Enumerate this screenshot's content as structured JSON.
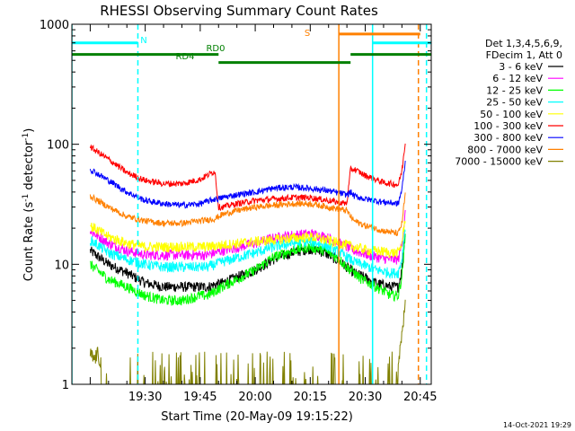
{
  "chart_data": {
    "type": "line",
    "title": "RHESSI Observing Summary Count Rates",
    "xlabel": "Start Time (20-May-09 19:15:22)",
    "ylabel": "Count Rate (s⁻¹ detector⁻¹)",
    "ylabel_main": "Count Rate (s",
    "ylabel_sup1": "-1",
    "ylabel_mid": " detector",
    "ylabel_sup2": "-1",
    "ylabel_end": ")",
    "y_scale": "log",
    "ylim": [
      1,
      1000
    ],
    "xlim_minutes": [
      -5,
      93
    ],
    "x_tick_minutes": [
      15,
      30,
      45,
      60,
      75,
      90
    ],
    "x_tick_labels": [
      "19:30",
      "19:45",
      "20:00",
      "20:15",
      "20:30",
      "20:45"
    ],
    "y_tick_values": [
      1,
      10,
      100,
      1000
    ],
    "y_tick_labels": [
      "1",
      "10",
      "100",
      "1000"
    ],
    "legend_position": "right",
    "legend_header": [
      "Det 1,3,4,5,6,9,",
      "FDecim 1, Att 0"
    ],
    "series": [
      {
        "name": "3 - 6 keV",
        "color": "#000000",
        "x": [
          0,
          5,
          10,
          15,
          20,
          25,
          30,
          32,
          36,
          45,
          50,
          55,
          60,
          62,
          64,
          66,
          68,
          70,
          72,
          74,
          76,
          78,
          82,
          84,
          85,
          86
        ],
        "y": [
          13,
          10,
          8.5,
          7,
          6.5,
          6.5,
          6.5,
          6.5,
          7,
          9,
          11,
          12.5,
          13.5,
          13,
          12.5,
          11.5,
          10.5,
          9.5,
          8.5,
          8,
          7.5,
          7,
          6.5,
          6.5,
          9,
          20
        ]
      },
      {
        "name": "6 - 12 keV",
        "color": "#ff00ff",
        "x": [
          0,
          5,
          10,
          15,
          20,
          25,
          30,
          32,
          36,
          45,
          50,
          55,
          60,
          62,
          64,
          66,
          68,
          70,
          72,
          74,
          76,
          78,
          82,
          84,
          85,
          86
        ],
        "y": [
          19,
          15,
          13,
          12,
          12,
          12,
          12,
          12,
          13,
          15,
          16.5,
          17.5,
          18,
          17.5,
          17,
          16,
          15,
          14,
          13,
          12.5,
          12,
          11.5,
          11,
          11,
          15,
          28
        ]
      },
      {
        "name": "12 - 25 keV",
        "color": "#00ff00",
        "x": [
          0,
          5,
          10,
          15,
          20,
          25,
          30,
          32,
          36,
          45,
          50,
          55,
          60,
          62,
          64,
          66,
          68,
          70,
          72,
          74,
          76,
          78,
          82,
          84,
          85,
          86
        ],
        "y": [
          10,
          7.5,
          6.5,
          5.5,
          5,
          5,
          5.5,
          5.5,
          6.5,
          9,
          11.5,
          13,
          14,
          13.5,
          13,
          12,
          11,
          9.5,
          8.5,
          7.5,
          7,
          6.5,
          5.5,
          5.5,
          8,
          18
        ]
      },
      {
        "name": "25 - 50 keV",
        "color": "#00ffff",
        "x": [
          0,
          5,
          10,
          15,
          20,
          25,
          30,
          32,
          36,
          45,
          50,
          55,
          60,
          62,
          64,
          66,
          68,
          70,
          72,
          74,
          76,
          78,
          82,
          84,
          85,
          86
        ],
        "y": [
          16,
          12.5,
          11,
          10,
          9.5,
          9.5,
          9.5,
          9.5,
          10.5,
          12.5,
          14,
          15,
          15.5,
          15,
          14.5,
          13.5,
          12.5,
          11.5,
          10.5,
          10,
          9.5,
          9,
          8.5,
          8.5,
          11,
          22
        ]
      },
      {
        "name": "50 - 100 keV",
        "color": "#ffff00",
        "x": [
          0,
          5,
          10,
          15,
          20,
          25,
          30,
          32,
          36,
          45,
          50,
          55,
          60,
          62,
          64,
          66,
          68,
          70,
          72,
          74,
          76,
          78,
          82,
          84,
          85,
          86
        ],
        "y": [
          21,
          17,
          15,
          14,
          14,
          14,
          14,
          14,
          14.5,
          15.5,
          16,
          16.5,
          17,
          16.5,
          16,
          15.5,
          15,
          14.5,
          14,
          13.5,
          13,
          13,
          12.5,
          12.5,
          15,
          26
        ]
      },
      {
        "name": "100 - 300 keV",
        "color": "#ff0000",
        "x": [
          0,
          5,
          10,
          15,
          20,
          25,
          30,
          34,
          35,
          36,
          40,
          45,
          50,
          55,
          60,
          65,
          70,
          71,
          72,
          75,
          80,
          84,
          85,
          86
        ],
        "y": [
          95,
          75,
          58,
          50,
          47,
          47,
          51,
          60,
          30,
          30,
          32,
          34,
          35,
          36,
          36,
          34,
          32,
          62,
          62,
          55,
          48,
          46,
          60,
          110
        ]
      },
      {
        "name": "300 - 800 keV",
        "color": "#0000ff",
        "x": [
          0,
          5,
          10,
          15,
          20,
          25,
          30,
          34,
          35,
          36,
          40,
          45,
          50,
          55,
          60,
          65,
          70,
          71,
          72,
          75,
          80,
          84,
          85,
          86
        ],
        "y": [
          62,
          50,
          40,
          34,
          32,
          31,
          32,
          35,
          35,
          36,
          38,
          40,
          43,
          44,
          43,
          41,
          38,
          40,
          37,
          35,
          33,
          32,
          42,
          75
        ]
      },
      {
        "name": "800 - 7000 keV",
        "color": "#ff8000",
        "x": [
          0,
          5,
          10,
          15,
          20,
          25,
          30,
          34,
          35,
          36,
          40,
          45,
          50,
          55,
          60,
          65,
          70,
          71,
          72,
          75,
          80,
          84,
          85,
          86
        ],
        "y": [
          37,
          30,
          25,
          23,
          22,
          22,
          23,
          24,
          25,
          26,
          28,
          30,
          31,
          32,
          32,
          30,
          28,
          25,
          23,
          21,
          19,
          18,
          22,
          40
        ]
      },
      {
        "name": "7000 - 15000 keV",
        "color": "#808000",
        "x": [
          0,
          1,
          2,
          3,
          35,
          40,
          45,
          50,
          55,
          60,
          65,
          70,
          84,
          85,
          86
        ],
        "y": [
          1.8,
          1.6,
          1.8,
          1.5,
          1.5,
          1.6,
          1.5,
          1.7,
          1.5,
          1.6,
          1.5,
          1.4,
          1.5,
          2.5,
          5
        ]
      }
    ],
    "flags": {
      "N": {
        "label": "N",
        "color": "#00ffff",
        "segments": [
          [
            -5,
            13
          ],
          [
            77,
            93
          ]
        ],
        "level": 700
      },
      "S": {
        "label": "S",
        "color": "#ff8000",
        "segments": [
          [
            67.8,
            90
          ]
        ],
        "level": 830
      },
      "RD0": {
        "label": "RD0",
        "color": "#008000",
        "segments": [
          [
            -5,
            35
          ],
          [
            71,
            93
          ]
        ],
        "level": 560
      },
      "RD4": {
        "label": "RD4",
        "color": "#008000",
        "segments": [
          [
            35,
            71
          ]
        ],
        "level": 480
      }
    },
    "vertical_markers": [
      {
        "x": -5,
        "color": "#00ffff",
        "style": "solid"
      },
      {
        "x": 13,
        "color": "#00ffff",
        "style": "dashed"
      },
      {
        "x": 67.8,
        "color": "#ff8000",
        "style": "solid"
      },
      {
        "x": 77,
        "color": "#00ffff",
        "style": "solid"
      },
      {
        "x": 89.5,
        "color": "#ff8000",
        "style": "dashed"
      },
      {
        "x": 91.7,
        "color": "#00ffff",
        "style": "dashed"
      }
    ]
  },
  "footer": {
    "date_stamp": "14-Oct-2021 19:29"
  }
}
